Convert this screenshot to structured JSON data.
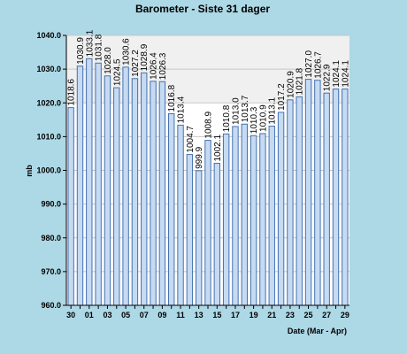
{
  "chart_data": {
    "type": "bar",
    "title": "Barometer - Siste 31 dager",
    "xlabel": "Date (Mar - Apr)",
    "ylabel": "mb",
    "ylim": [
      960.0,
      1040.0
    ],
    "yticks": [
      "960.0",
      "970.0",
      "980.0",
      "990.0",
      "1000.0",
      "1010.0",
      "1020.0",
      "1030.0",
      "1040.0"
    ],
    "categories": [
      "30",
      "31",
      "01",
      "02",
      "03",
      "04",
      "05",
      "06",
      "07",
      "08",
      "09",
      "10",
      "11",
      "12",
      "13",
      "14",
      "15",
      "16",
      "17",
      "18",
      "19",
      "20",
      "21",
      "22",
      "23",
      "24",
      "25",
      "26",
      "27",
      "28",
      "29"
    ],
    "xtick_labels": [
      "30",
      "01",
      "03",
      "05",
      "07",
      "09",
      "11",
      "13",
      "15",
      "17",
      "19",
      "21",
      "23",
      "25",
      "27",
      "29"
    ],
    "values": [
      1018.6,
      1030.9,
      1033.1,
      1031.8,
      1028.0,
      1024.5,
      1030.6,
      1027.2,
      1028.9,
      1026.4,
      1026.3,
      1016.8,
      1013.4,
      1004.7,
      999.9,
      1008.9,
      1002.1,
      1010.8,
      1013.0,
      1013.7,
      1010.3,
      1010.9,
      1013.1,
      1017.2,
      1020.9,
      1021.8,
      1027.0,
      1026.7,
      1022.9,
      1024.1,
      1024.1
    ],
    "grid": true,
    "colors": {
      "background": "#add8e6",
      "plot_background": "#ffffff",
      "band_background": "#f0f0f0",
      "bar_fill": "#c6daf2",
      "bar_edge": "#4472b0",
      "grid": "#c8c8c8"
    }
  }
}
